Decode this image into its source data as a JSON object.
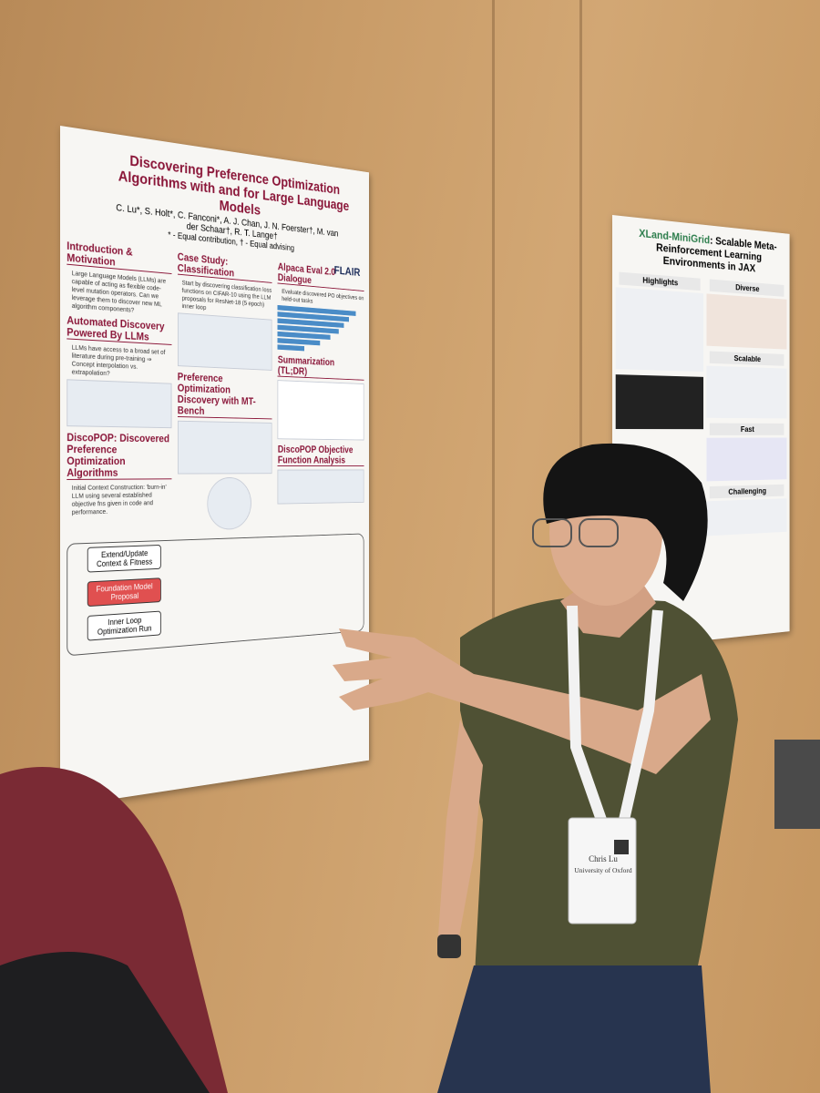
{
  "poster_left": {
    "title": "Discovering Preference Optimization Algorithms with and for Large Language Models",
    "authors": "C. Lu*, S. Holt*, C. Fanconi*, A. J. Chan, J. N. Foerster†, M. van der Schaar†, R. T. Lange†",
    "note": "* - Equal contribution, † - Equal advising",
    "logo": "FLAIR",
    "sections": [
      "Introduction & Motivation",
      "Automated Discovery Powered By LLMs",
      "DiscoPOP: Discovered Preference Optimization Algorithms",
      "Case Study: Classification",
      "Preference Optimization Discovery with MT-Bench",
      "Alpaca Eval 2.0 Dialogue",
      "Summarization (TL;DR)",
      "DiscoPOP Objective Function Analysis"
    ],
    "bullets": [
      "Large Language Models (LLMs) are capable of acting as flexible code-level mutation operators. Can we leverage them to discover new ML algorithm components?",
      "LLMs have access to a broad set of literature during pre-training ⇒ Concept interpolation vs. extrapolation?",
      "Initial Context Construction: 'burn-in' LLM using several established objective fns given in code and performance.",
      "Start by discovering classification loss functions on CIFAR-10 using the LLM proposals for ResNet-18 (5 epoch) inner loop",
      "Evaluate discovered PO objectives on held-out tasks"
    ],
    "diagram": [
      "Extend/Update Context & Fitness",
      "Foundation Model Proposal",
      "Inner Loop Optimization Run"
    ]
  },
  "poster_right": {
    "title_highlight": "XLand-MiniGrid",
    "title": ": Scalable Meta-Reinforcement Learning Environments in JAX",
    "sections": [
      "Highlights",
      "Diverse",
      "Scalable",
      "Fast",
      "Challenging"
    ]
  },
  "badge": {
    "name": "Chris Lu",
    "affiliation": "University of Oxford"
  }
}
